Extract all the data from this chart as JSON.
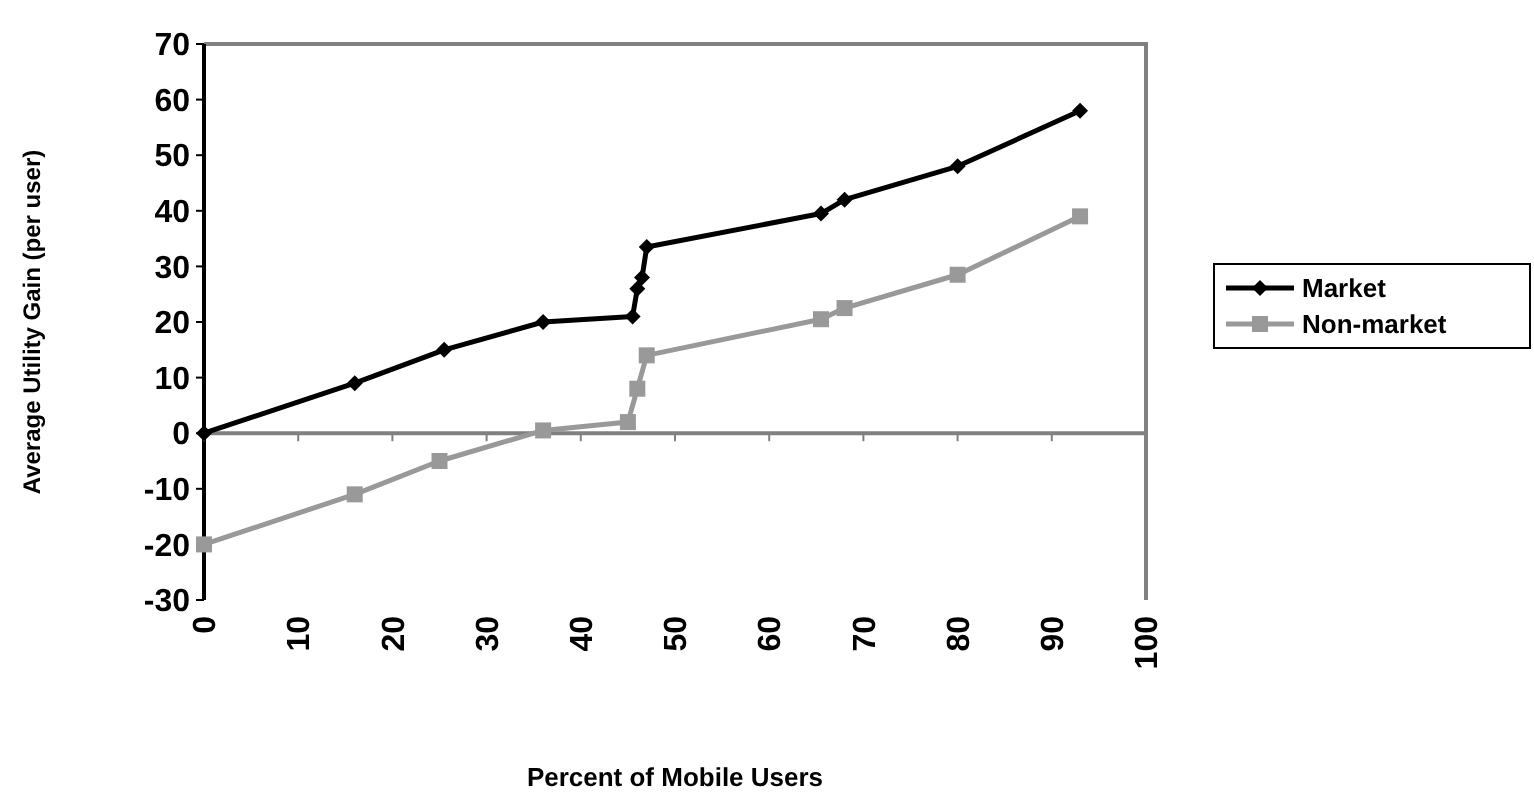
{
  "chart_data": {
    "type": "line",
    "xlabel": "Percent of Mobile Users",
    "ylabel": "Average Utility Gain (per user)",
    "xlim": [
      0,
      100
    ],
    "xticks": [
      0,
      10,
      20,
      30,
      40,
      50,
      60,
      70,
      80,
      90,
      100
    ],
    "ylim": [
      -30,
      70
    ],
    "yticks": [
      -30,
      -20,
      -10,
      0,
      10,
      20,
      30,
      40,
      50,
      60,
      70
    ],
    "legend": "right",
    "series": [
      {
        "name": "Market",
        "color": "#000000",
        "marker": "diamond",
        "x": [
          0,
          16,
          25.5,
          36,
          45.5,
          46,
          46.5,
          47,
          65.5,
          68,
          80,
          93
        ],
        "values": [
          0,
          9,
          15,
          20,
          21,
          26,
          28,
          33.5,
          39.5,
          42,
          48,
          58
        ]
      },
      {
        "name": "Non-market",
        "color": "#999999",
        "marker": "square",
        "x": [
          0,
          16,
          25,
          36,
          45,
          46,
          47,
          65.5,
          68,
          80,
          93
        ],
        "values": [
          -20,
          -11,
          -5,
          0.5,
          2,
          8,
          14,
          20.5,
          22.5,
          28.5,
          39
        ]
      }
    ]
  }
}
